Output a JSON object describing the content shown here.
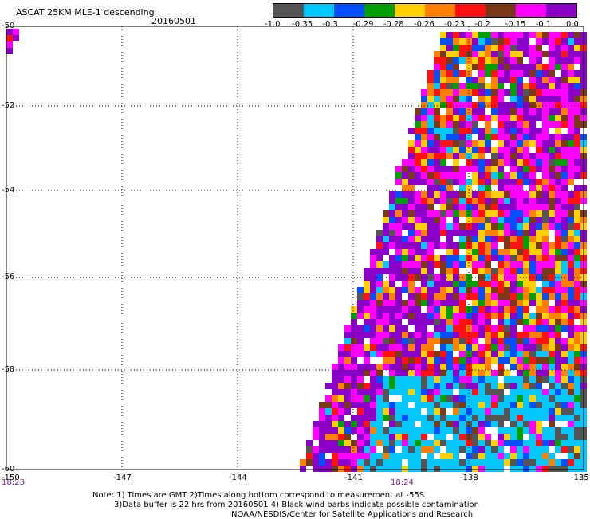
{
  "header": {
    "title": "ASCAT 25KM MLE-1 descending",
    "date": "20160501"
  },
  "colorbar": {
    "colors": [
      "#555555",
      "#00c8ff",
      "#0050ff",
      "#00a000",
      "#ffd000",
      "#ff8000",
      "#ff1010",
      "#7a3a1a",
      "#ff00ff",
      "#8a00c8"
    ],
    "labels": [
      "-1.0",
      "-0.35",
      "-0.3",
      "-0.29",
      "-0.28",
      "-0.26",
      "-0.23",
      "-0.2",
      "-0.15",
      "-0.1",
      "0.0"
    ]
  },
  "axes": {
    "lat_labels": [
      "-50",
      "-52",
      "-54",
      "-56",
      "-58",
      "-60"
    ],
    "lon_labels": [
      "-150",
      "-147",
      "-144",
      "-141",
      "-138",
      "-135"
    ],
    "time_labels": [
      "18:23",
      "18:24"
    ]
  },
  "notes": {
    "line1": "Note: 1) Times are GMT 2)Times along bottom correspond to measurement at -55S",
    "line2": "3)Data buffer is 22 hrs from 20160501 4) Black wind barbs indicate possible contamination",
    "line3": "NOAA/NESDIS/Center for Satellite Applications and Research"
  }
}
